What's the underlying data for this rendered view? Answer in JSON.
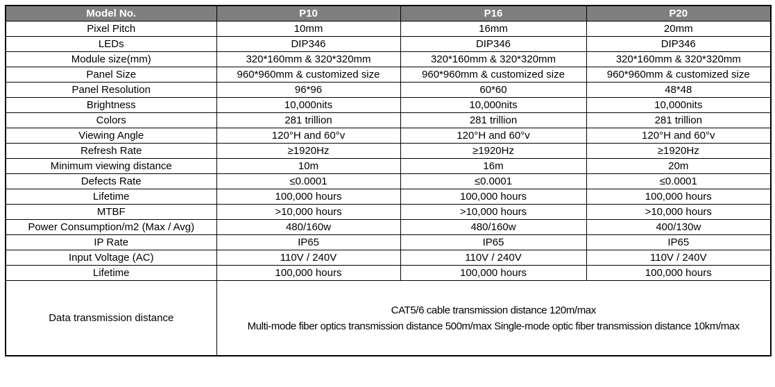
{
  "table": {
    "header": {
      "model_label": "Model No.",
      "columns": [
        "P10",
        "P16",
        "P20"
      ]
    },
    "rows": [
      {
        "label": "Pixel Pitch",
        "values": [
          "10mm",
          "16mm",
          "20mm"
        ]
      },
      {
        "label": "LEDs",
        "values": [
          "DIP346",
          "DIP346",
          "DIP346"
        ]
      },
      {
        "label": "Module size(mm)",
        "values": [
          "320*160mm & 320*320mm",
          "320*160mm & 320*320mm",
          "320*160mm & 320*320mm"
        ]
      },
      {
        "label": "Panel Size",
        "values": [
          "960*960mm & customized size",
          "960*960mm & customized size",
          "960*960mm & customized size"
        ]
      },
      {
        "label": "Panel Resolution",
        "values": [
          "96*96",
          "60*60",
          "48*48"
        ]
      },
      {
        "label": "Brightness",
        "values": [
          "10,000nits",
          "10,000nits",
          "10,000nits"
        ]
      },
      {
        "label": "Colors",
        "values": [
          "281 trillion",
          "281 trillion",
          "281 trillion"
        ]
      },
      {
        "label": "Viewing Angle",
        "values": [
          "120°H and 60°v",
          "120°H and 60°v",
          "120°H and 60°v"
        ]
      },
      {
        "label": "Refresh Rate",
        "values": [
          "≥1920Hz",
          "≥1920Hz",
          "≥1920Hz"
        ]
      },
      {
        "label": "Minimum viewing distance",
        "values": [
          "10m",
          "16m",
          "20m"
        ]
      },
      {
        "label": "Defects Rate",
        "values": [
          "≤0.0001",
          "≤0.0001",
          "≤0.0001"
        ]
      },
      {
        "label": "Lifetime",
        "values": [
          "100,000 hours",
          "100,000 hours",
          "100,000 hours"
        ]
      },
      {
        "label": "MTBF",
        "values": [
          ">10,000 hours",
          ">10,000 hours",
          ">10,000 hours"
        ]
      },
      {
        "label": "Power Consumption/m2 (Max / Avg)",
        "values": [
          "480/160w",
          "480/160w",
          "400/130w"
        ]
      },
      {
        "label": "IP Rate",
        "values": [
          "IP65",
          "IP65",
          "IP65"
        ]
      },
      {
        "label": "Input Voltage (AC)",
        "values": [
          "110V / 240V",
          "110V / 240V",
          "110V / 240V"
        ]
      },
      {
        "label": "Lifetime",
        "values": [
          "100,000 hours",
          "100,000 hours",
          "100,000 hours"
        ]
      }
    ],
    "footer_row": {
      "label": "Data transmission distance",
      "lines": [
        "CAT5/6 cable transmission distance 120m/max",
        "Multi-mode fiber optics transmission distance 500m/max Single-mode optic fiber transmission distance 10km/max"
      ]
    },
    "colors": {
      "header_bg": "#7f7f7f",
      "header_text": "#ffffff",
      "border": "#000000",
      "cell_text": "#000000",
      "background": "#ffffff"
    }
  }
}
